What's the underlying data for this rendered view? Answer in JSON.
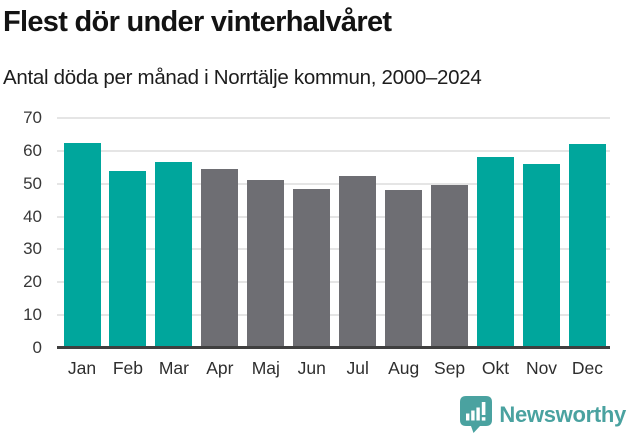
{
  "title": "Flest dör under vinterhalvåret",
  "subtitle": "Antal döda per månad i Norrtälje kommun, 2000–2024",
  "footer": {
    "brand": "Newsworthy"
  },
  "colors": {
    "winter_bar": "#00a69c",
    "summer_bar": "#6e6e73",
    "gridline": "#e5e5e5",
    "axis_line": "#3f3f3f",
    "logo_teal": "#4aa2a0"
  },
  "chart_data": {
    "type": "bar",
    "title": "Flest dör under vinterhalvåret",
    "subtitle": "Antal döda per månad i Norrtälje kommun, 2000–2024",
    "categories": [
      "Jan",
      "Feb",
      "Mar",
      "Apr",
      "Maj",
      "Jun",
      "Jul",
      "Aug",
      "Sep",
      "Okt",
      "Nov",
      "Dec"
    ],
    "values": [
      62.5,
      54,
      56.5,
      54.5,
      51,
      48.5,
      52.5,
      48,
      49.5,
      58,
      56,
      62
    ],
    "bar_colors": [
      "#00a69c",
      "#00a69c",
      "#00a69c",
      "#6e6e73",
      "#6e6e73",
      "#6e6e73",
      "#6e6e73",
      "#6e6e73",
      "#6e6e73",
      "#00a69c",
      "#00a69c",
      "#00a69c"
    ],
    "series_note": "teal = winter half-year months (Jan-Mar, Okt-Dec), gray = summer half-year months (Apr-Sep)",
    "xlabel": "",
    "ylabel": "",
    "ylim": [
      0,
      70
    ],
    "yticks": [
      0,
      10,
      20,
      30,
      40,
      50,
      60,
      70
    ],
    "grid": true,
    "legend": "none"
  }
}
